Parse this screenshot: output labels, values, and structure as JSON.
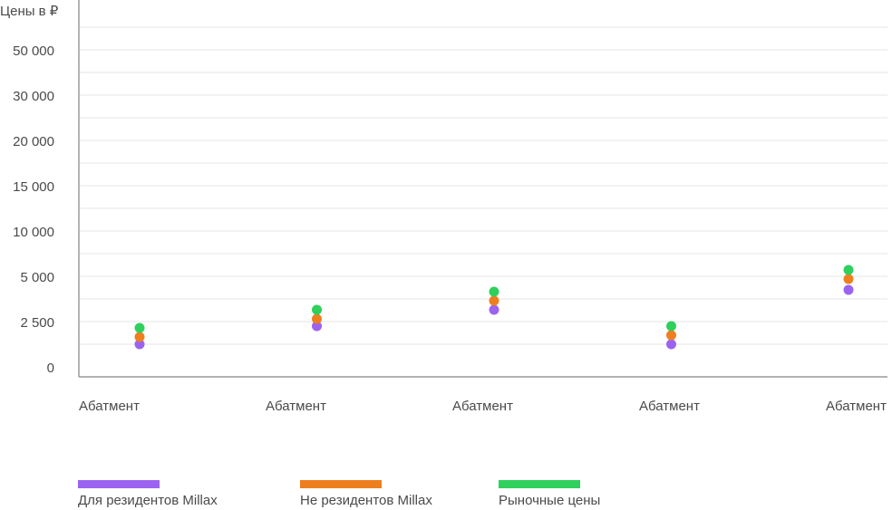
{
  "chart_data": {
    "type": "scatter",
    "y_unit_label": "Цены в ₽",
    "y_ticks": [
      "0",
      "2 500",
      "5 000",
      "10 000",
      "15 000",
      "20 000",
      "30 000",
      "50 000"
    ],
    "categories": [
      "Абатмент",
      "Абатмент",
      "Абатмент",
      "Абатмент",
      "Абатмент"
    ],
    "series": [
      {
        "name": "Для резидентов Millax",
        "color": "#9b63f0",
        "values": [
          1300,
          2300,
          3200,
          1300,
          4300
        ]
      },
      {
        "name": "Не резидентов Millax",
        "color": "#ee7f1e",
        "values": [
          1700,
          2700,
          3700,
          1800,
          4900
        ]
      },
      {
        "name": "Рыночные цены",
        "color": "#2fd05c",
        "values": [
          2200,
          3200,
          4200,
          2300,
          5800
        ]
      }
    ],
    "grid": true,
    "legend_position": "bottom"
  }
}
